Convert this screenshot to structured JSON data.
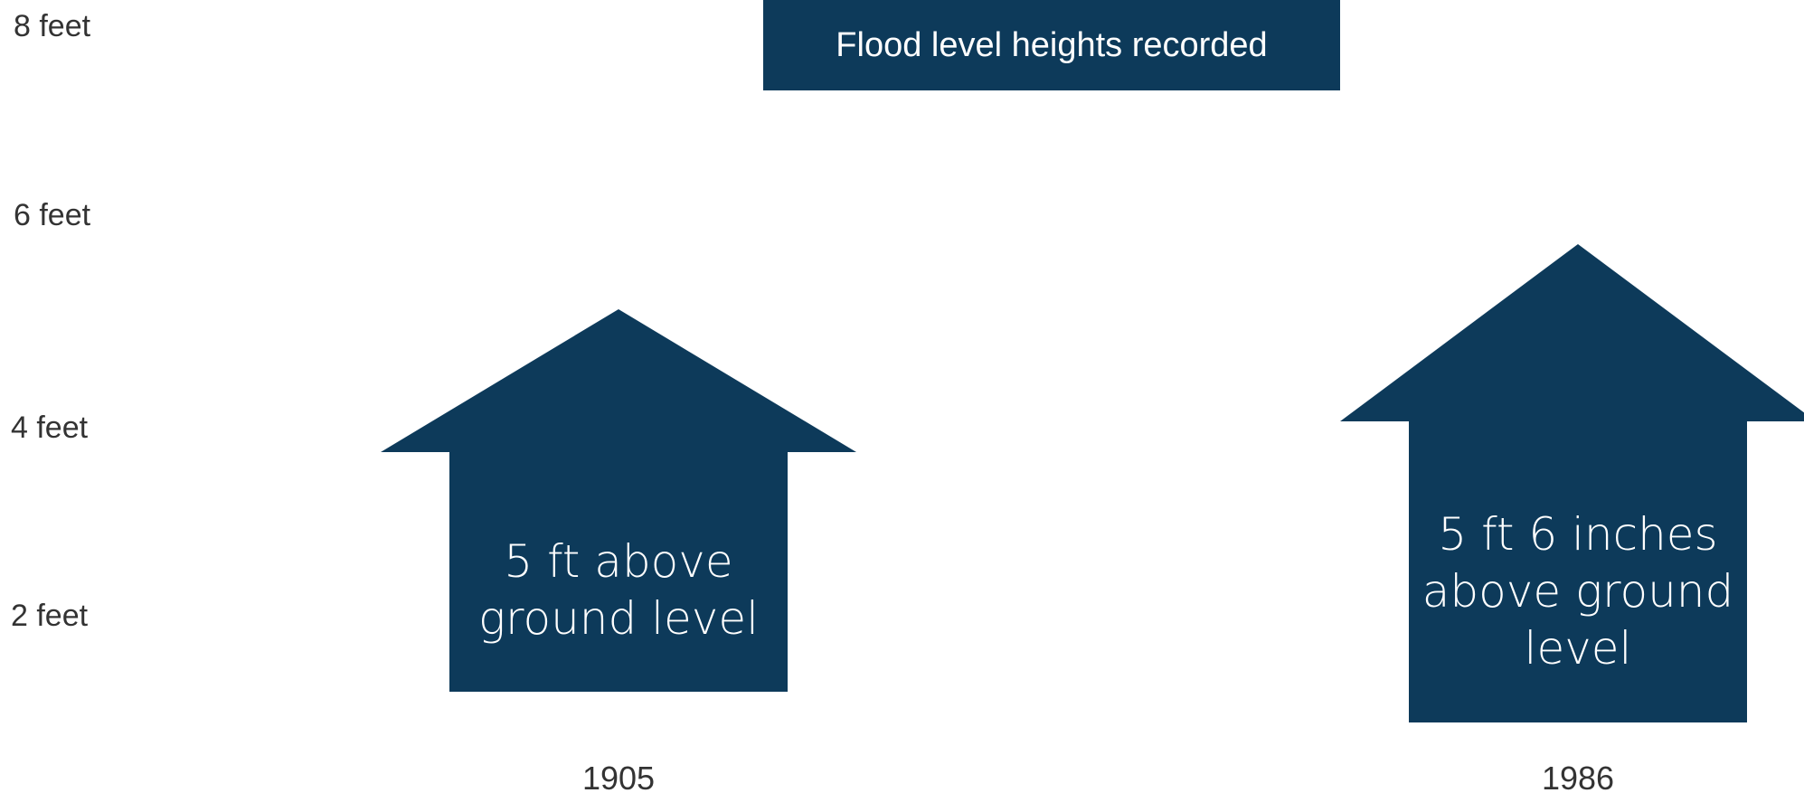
{
  "colors": {
    "house": "#0d3a5a",
    "title_box": "#0d3a5a",
    "axis_text": "#333333",
    "background": "#ffffff"
  },
  "chart_data": {
    "type": "bar",
    "title": "Flood level heights recorded",
    "mark_shape": "house-icon",
    "categories": [
      "1905",
      "1986"
    ],
    "values_ft": [
      5,
      5.5
    ],
    "data_labels": [
      [
        "5 ft above",
        "ground level"
      ],
      [
        "5 ft 6 inches",
        "above ground",
        "level"
      ]
    ],
    "yticks": [
      {
        "value": 2,
        "label": "2 feet"
      },
      {
        "value": 4,
        "label": "4 feet"
      },
      {
        "value": 6,
        "label": "6 feet"
      },
      {
        "value": 8,
        "label": "8 feet"
      }
    ],
    "ylim": [
      0,
      8
    ],
    "grid": false,
    "legend": "none"
  }
}
